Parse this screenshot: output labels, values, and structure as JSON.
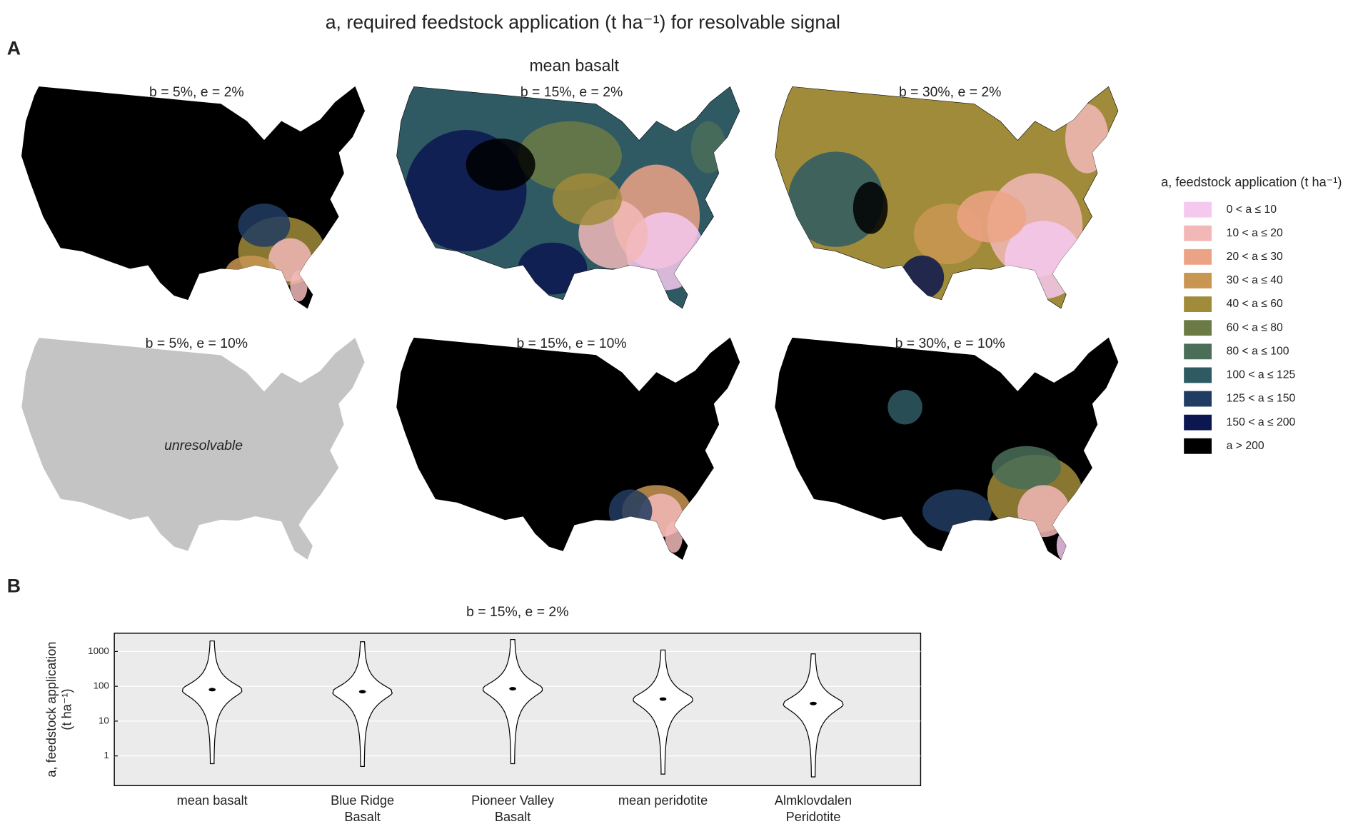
{
  "title": "a, required feedstock application (t ha⁻¹) for resolvable signal",
  "panel_a": {
    "label": "A",
    "heading": "mean basalt",
    "maps": [
      {
        "subtitle": "b = 5%, e = 2%"
      },
      {
        "subtitle": "b = 15%, e = 2%"
      },
      {
        "subtitle": "b = 30%, e = 2%"
      },
      {
        "subtitle": "b = 5%, e = 10%",
        "note": "unresolvable"
      },
      {
        "subtitle": "b = 15%, e = 10%"
      },
      {
        "subtitle": "b = 30%, e = 10%"
      }
    ],
    "legend": {
      "title": "a, feedstock application (t ha⁻¹)",
      "items": [
        {
          "label": "0 < a ≤ 10",
          "color": "#f4c8ef"
        },
        {
          "label": "10 < a ≤ 20",
          "color": "#f2b8b8"
        },
        {
          "label": "20 < a ≤ 30",
          "color": "#eca385"
        },
        {
          "label": "30 < a ≤ 40",
          "color": "#c99652"
        },
        {
          "label": "40 < a ≤ 60",
          "color": "#a08b3a"
        },
        {
          "label": "60 < a ≤ 80",
          "color": "#6c7b45"
        },
        {
          "label": "80 < a ≤ 100",
          "color": "#4a6e58"
        },
        {
          "label": "100 < a ≤ 125",
          "color": "#2f5a64"
        },
        {
          "label": "125 < a ≤ 150",
          "color": "#213c62"
        },
        {
          "label": "150 < a ≤ 200",
          "color": "#0c1650"
        },
        {
          "label": "a > 200",
          "color": "#000000"
        }
      ]
    }
  },
  "panel_b": {
    "label": "B"
  },
  "chart_data": {
    "type": "violin",
    "title": "b = 15%, e = 2%",
    "ylabel": [
      "a, feedstock application",
      "(t ha⁻¹)"
    ],
    "categories": [
      [
        "mean basalt"
      ],
      [
        "Blue Ridge",
        "Basalt"
      ],
      [
        "Pioneer Valley",
        "Basalt"
      ],
      [
        "mean peridotite"
      ],
      [
        "Almklovdalen",
        "Peridotite"
      ]
    ],
    "median": [
      80,
      70,
      85,
      43,
      32
    ],
    "min": [
      0.6,
      0.5,
      0.6,
      0.3,
      0.25
    ],
    "max": [
      2000,
      1900,
      2200,
      1100,
      850
    ],
    "log_scale": true,
    "ylim": [
      0.14,
      3350
    ],
    "yticks": [
      1,
      10,
      100,
      1000
    ],
    "grid": true
  }
}
